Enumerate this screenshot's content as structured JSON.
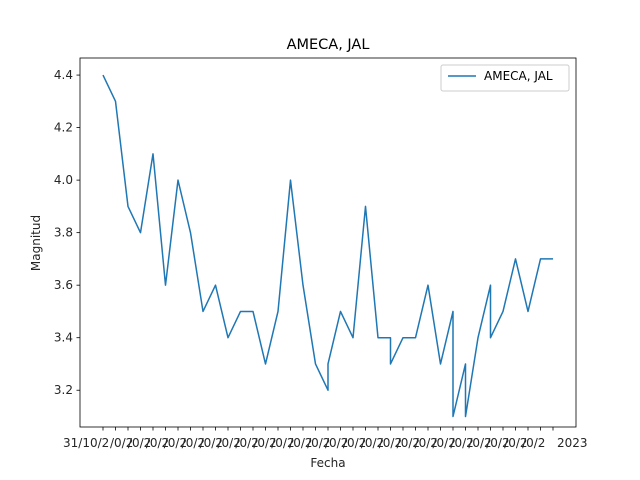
{
  "chart_data": {
    "type": "line",
    "title": "AMECA, JAL",
    "xlabel": "Fecha",
    "ylabel": "Magnitud",
    "ylim": [
      3.06,
      4.465
    ],
    "yticks": [
      "3.2",
      "3.4",
      "3.6",
      "3.8",
      "4.0",
      "4.2",
      "4.4"
    ],
    "xtick_labels_note": "overlapping date tick labels, first reads 31/10/2",
    "xtick_first_label": "31/10/2",
    "xtick_last_label": "2023",
    "legend": "upper-right",
    "grid": false,
    "series": [
      {
        "name": "AMECA, JAL",
        "color": "#1f77b4",
        "x": [
          0,
          1,
          2,
          3,
          4,
          5,
          6,
          7,
          8,
          9,
          10,
          11,
          12,
          13,
          14,
          15,
          16,
          17,
          18,
          18,
          19,
          20,
          21,
          22,
          23,
          23,
          24,
          25,
          26,
          27,
          28,
          28,
          29,
          29,
          30,
          31,
          31,
          32,
          33,
          34,
          35,
          36,
          36
        ],
        "values": [
          4.4,
          4.3,
          3.9,
          3.8,
          4.1,
          3.6,
          4.0,
          3.8,
          3.5,
          3.6,
          3.4,
          3.5,
          3.5,
          3.3,
          3.5,
          4.0,
          3.6,
          3.3,
          3.2,
          3.3,
          3.5,
          3.4,
          3.9,
          3.4,
          3.4,
          3.3,
          3.4,
          3.4,
          3.6,
          3.3,
          3.5,
          3.1,
          3.3,
          3.1,
          3.4,
          3.6,
          3.4,
          3.5,
          3.7,
          3.5,
          3.7,
          3.7,
          3.7
        ]
      }
    ]
  }
}
